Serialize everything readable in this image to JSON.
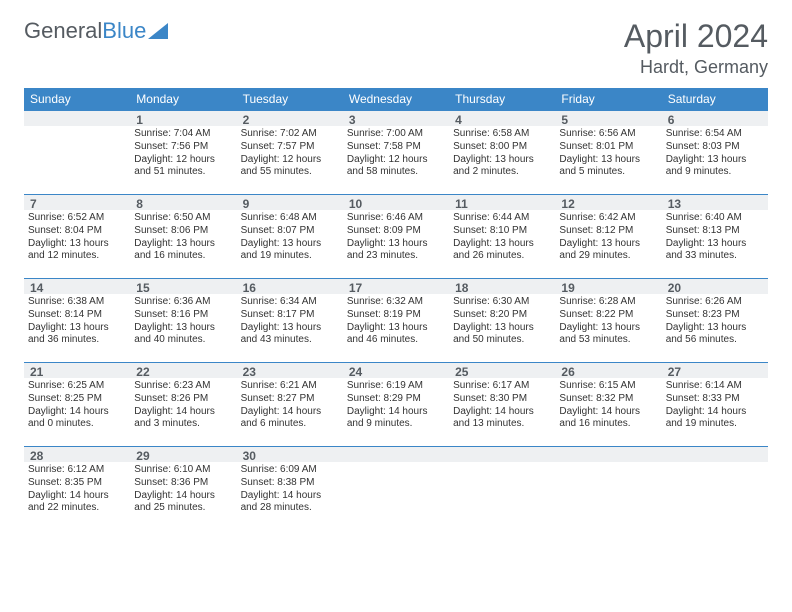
{
  "logo": {
    "textA": "General",
    "textB": "Blue"
  },
  "title": "April 2024",
  "location": "Hardt, Germany",
  "weekdays": [
    "Sunday",
    "Monday",
    "Tuesday",
    "Wednesday",
    "Thursday",
    "Friday",
    "Saturday"
  ],
  "colors": {
    "header_bg": "#3b86c7",
    "row_bg": "#eef0f2",
    "text": "#555b61"
  },
  "firstWeekday": 1,
  "daysInMonth": 30,
  "days": {
    "1": {
      "sunrise": "7:04 AM",
      "sunset": "7:56 PM",
      "daylight": "12 hours and 51 minutes."
    },
    "2": {
      "sunrise": "7:02 AM",
      "sunset": "7:57 PM",
      "daylight": "12 hours and 55 minutes."
    },
    "3": {
      "sunrise": "7:00 AM",
      "sunset": "7:58 PM",
      "daylight": "12 hours and 58 minutes."
    },
    "4": {
      "sunrise": "6:58 AM",
      "sunset": "8:00 PM",
      "daylight": "13 hours and 2 minutes."
    },
    "5": {
      "sunrise": "6:56 AM",
      "sunset": "8:01 PM",
      "daylight": "13 hours and 5 minutes."
    },
    "6": {
      "sunrise": "6:54 AM",
      "sunset": "8:03 PM",
      "daylight": "13 hours and 9 minutes."
    },
    "7": {
      "sunrise": "6:52 AM",
      "sunset": "8:04 PM",
      "daylight": "13 hours and 12 minutes."
    },
    "8": {
      "sunrise": "6:50 AM",
      "sunset": "8:06 PM",
      "daylight": "13 hours and 16 minutes."
    },
    "9": {
      "sunrise": "6:48 AM",
      "sunset": "8:07 PM",
      "daylight": "13 hours and 19 minutes."
    },
    "10": {
      "sunrise": "6:46 AM",
      "sunset": "8:09 PM",
      "daylight": "13 hours and 23 minutes."
    },
    "11": {
      "sunrise": "6:44 AM",
      "sunset": "8:10 PM",
      "daylight": "13 hours and 26 minutes."
    },
    "12": {
      "sunrise": "6:42 AM",
      "sunset": "8:12 PM",
      "daylight": "13 hours and 29 minutes."
    },
    "13": {
      "sunrise": "6:40 AM",
      "sunset": "8:13 PM",
      "daylight": "13 hours and 33 minutes."
    },
    "14": {
      "sunrise": "6:38 AM",
      "sunset": "8:14 PM",
      "daylight": "13 hours and 36 minutes."
    },
    "15": {
      "sunrise": "6:36 AM",
      "sunset": "8:16 PM",
      "daylight": "13 hours and 40 minutes."
    },
    "16": {
      "sunrise": "6:34 AM",
      "sunset": "8:17 PM",
      "daylight": "13 hours and 43 minutes."
    },
    "17": {
      "sunrise": "6:32 AM",
      "sunset": "8:19 PM",
      "daylight": "13 hours and 46 minutes."
    },
    "18": {
      "sunrise": "6:30 AM",
      "sunset": "8:20 PM",
      "daylight": "13 hours and 50 minutes."
    },
    "19": {
      "sunrise": "6:28 AM",
      "sunset": "8:22 PM",
      "daylight": "13 hours and 53 minutes."
    },
    "20": {
      "sunrise": "6:26 AM",
      "sunset": "8:23 PM",
      "daylight": "13 hours and 56 minutes."
    },
    "21": {
      "sunrise": "6:25 AM",
      "sunset": "8:25 PM",
      "daylight": "14 hours and 0 minutes."
    },
    "22": {
      "sunrise": "6:23 AM",
      "sunset": "8:26 PM",
      "daylight": "14 hours and 3 minutes."
    },
    "23": {
      "sunrise": "6:21 AM",
      "sunset": "8:27 PM",
      "daylight": "14 hours and 6 minutes."
    },
    "24": {
      "sunrise": "6:19 AM",
      "sunset": "8:29 PM",
      "daylight": "14 hours and 9 minutes."
    },
    "25": {
      "sunrise": "6:17 AM",
      "sunset": "8:30 PM",
      "daylight": "14 hours and 13 minutes."
    },
    "26": {
      "sunrise": "6:15 AM",
      "sunset": "8:32 PM",
      "daylight": "14 hours and 16 minutes."
    },
    "27": {
      "sunrise": "6:14 AM",
      "sunset": "8:33 PM",
      "daylight": "14 hours and 19 minutes."
    },
    "28": {
      "sunrise": "6:12 AM",
      "sunset": "8:35 PM",
      "daylight": "14 hours and 22 minutes."
    },
    "29": {
      "sunrise": "6:10 AM",
      "sunset": "8:36 PM",
      "daylight": "14 hours and 25 minutes."
    },
    "30": {
      "sunrise": "6:09 AM",
      "sunset": "8:38 PM",
      "daylight": "14 hours and 28 minutes."
    }
  },
  "labels": {
    "sunrise": "Sunrise: ",
    "sunset": "Sunset: ",
    "daylight": "Daylight: "
  }
}
